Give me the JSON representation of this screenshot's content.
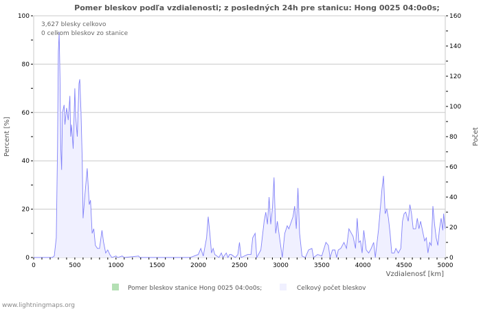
{
  "chart_data": {
    "type": "area",
    "title": "Pomer bleskov podľa vzdialenosti; z posledných 24h pre stanicu: Hong 0025 04:0o0s;",
    "xlabel": "Vzdialenosť   [km]",
    "ylabel_left": "Percent   [%]",
    "ylabel_right": "Počet",
    "xlim": [
      0,
      5000
    ],
    "ylim_left": [
      0,
      100
    ],
    "ylim_right": [
      0,
      160
    ],
    "x_ticks": [
      0,
      500,
      1000,
      1500,
      2000,
      2500,
      3000,
      3500,
      4000,
      4500,
      5000
    ],
    "y_ticks_left": [
      0,
      20,
      40,
      60,
      80,
      100
    ],
    "y_ticks_right": [
      0,
      20,
      40,
      60,
      80,
      100,
      120,
      140,
      160
    ],
    "grid": true,
    "legend_position": "bottom",
    "annotations": [
      "3,627 blesky celkovo",
      "0 celkom bleskov zo stanice"
    ],
    "series": [
      {
        "name": "Pomer bleskov stanice Hong 0025 04:0o0s;",
        "color": "#b4e0b4",
        "axis": "left",
        "x": [],
        "y": []
      },
      {
        "name": "Celkový počet bleskov",
        "color": "#f0f0ff",
        "line_color": "#8080f8",
        "axis": "right",
        "x": [
          0,
          225,
          250,
          275,
          290,
          300,
          310,
          320,
          330,
          340,
          350,
          370,
          380,
          400,
          420,
          440,
          450,
          460,
          480,
          500,
          510,
          530,
          550,
          560,
          575,
          590,
          600,
          620,
          650,
          675,
          690,
          710,
          730,
          750,
          775,
          800,
          830,
          850,
          875,
          900,
          925,
          950,
          1000,
          1020,
          1075,
          1100,
          1275,
          1290,
          1900,
          1950,
          2000,
          2030,
          2060,
          2100,
          2120,
          2140,
          2160,
          2180,
          2200,
          2250,
          2280,
          2300,
          2340,
          2360,
          2380,
          2400,
          2450,
          2480,
          2500,
          2520,
          2600,
          2640,
          2660,
          2690,
          2710,
          2760,
          2800,
          2820,
          2840,
          2860,
          2880,
          2900,
          2920,
          2940,
          2960,
          3000,
          3020,
          3050,
          3080,
          3100,
          3150,
          3170,
          3190,
          3210,
          3230,
          3260,
          3300,
          3340,
          3380,
          3400,
          3450,
          3500,
          3550,
          3580,
          3600,
          3630,
          3660,
          3680,
          3700,
          3730,
          3770,
          3800,
          3830,
          3860,
          3880,
          3910,
          3930,
          3950,
          3970,
          3990,
          4010,
          4040,
          4070,
          4100,
          4130,
          4150,
          4190,
          4230,
          4250,
          4270,
          4290,
          4310,
          4330,
          4350,
          4380,
          4400,
          4430,
          4460,
          4480,
          4500,
          4520,
          4550,
          4570,
          4590,
          4610,
          4640,
          4660,
          4680,
          4700,
          4730,
          4750,
          4770,
          4790,
          4810,
          4830,
          4850,
          4870,
          4890,
          4910,
          4930,
          4950,
          4970,
          4980,
          5000
        ],
        "y": [
          0,
          0,
          1,
          13,
          72,
          136,
          149,
          120,
          72,
          58,
          96,
          101,
          88,
          99,
          91,
          107,
          80,
          88,
          72,
          112,
          93,
          80,
          115,
          118,
          96,
          64,
          26,
          40,
          59,
          35,
          38,
          16,
          19,
          8,
          6,
          6,
          18,
          10,
          3,
          5,
          2,
          0,
          1,
          0,
          1,
          0,
          1,
          0,
          0,
          1,
          2,
          6,
          1,
          13,
          27,
          16,
          3,
          6,
          2,
          0,
          3,
          0,
          3,
          0,
          2,
          2,
          0,
          2,
          10,
          0,
          2,
          2,
          13,
          16,
          0,
          5,
          24,
          30,
          22,
          40,
          22,
          32,
          53,
          16,
          24,
          8,
          0,
          16,
          21,
          19,
          27,
          34,
          19,
          46,
          16,
          1,
          0,
          5,
          6,
          0,
          2,
          1,
          10,
          8,
          0,
          5,
          5,
          0,
          5,
          6,
          10,
          6,
          19,
          16,
          14,
          6,
          26,
          10,
          11,
          3,
          18,
          5,
          3,
          6,
          10,
          0,
          19,
          45,
          54,
          29,
          32,
          26,
          16,
          3,
          3,
          6,
          3,
          6,
          24,
          29,
          30,
          24,
          35,
          29,
          19,
          19,
          26,
          19,
          24,
          16,
          11,
          13,
          3,
          10,
          8,
          34,
          22,
          13,
          8,
          19,
          26,
          18,
          29,
          19
        ]
      }
    ]
  },
  "footer": {
    "source": "www.lightningmaps.org"
  }
}
